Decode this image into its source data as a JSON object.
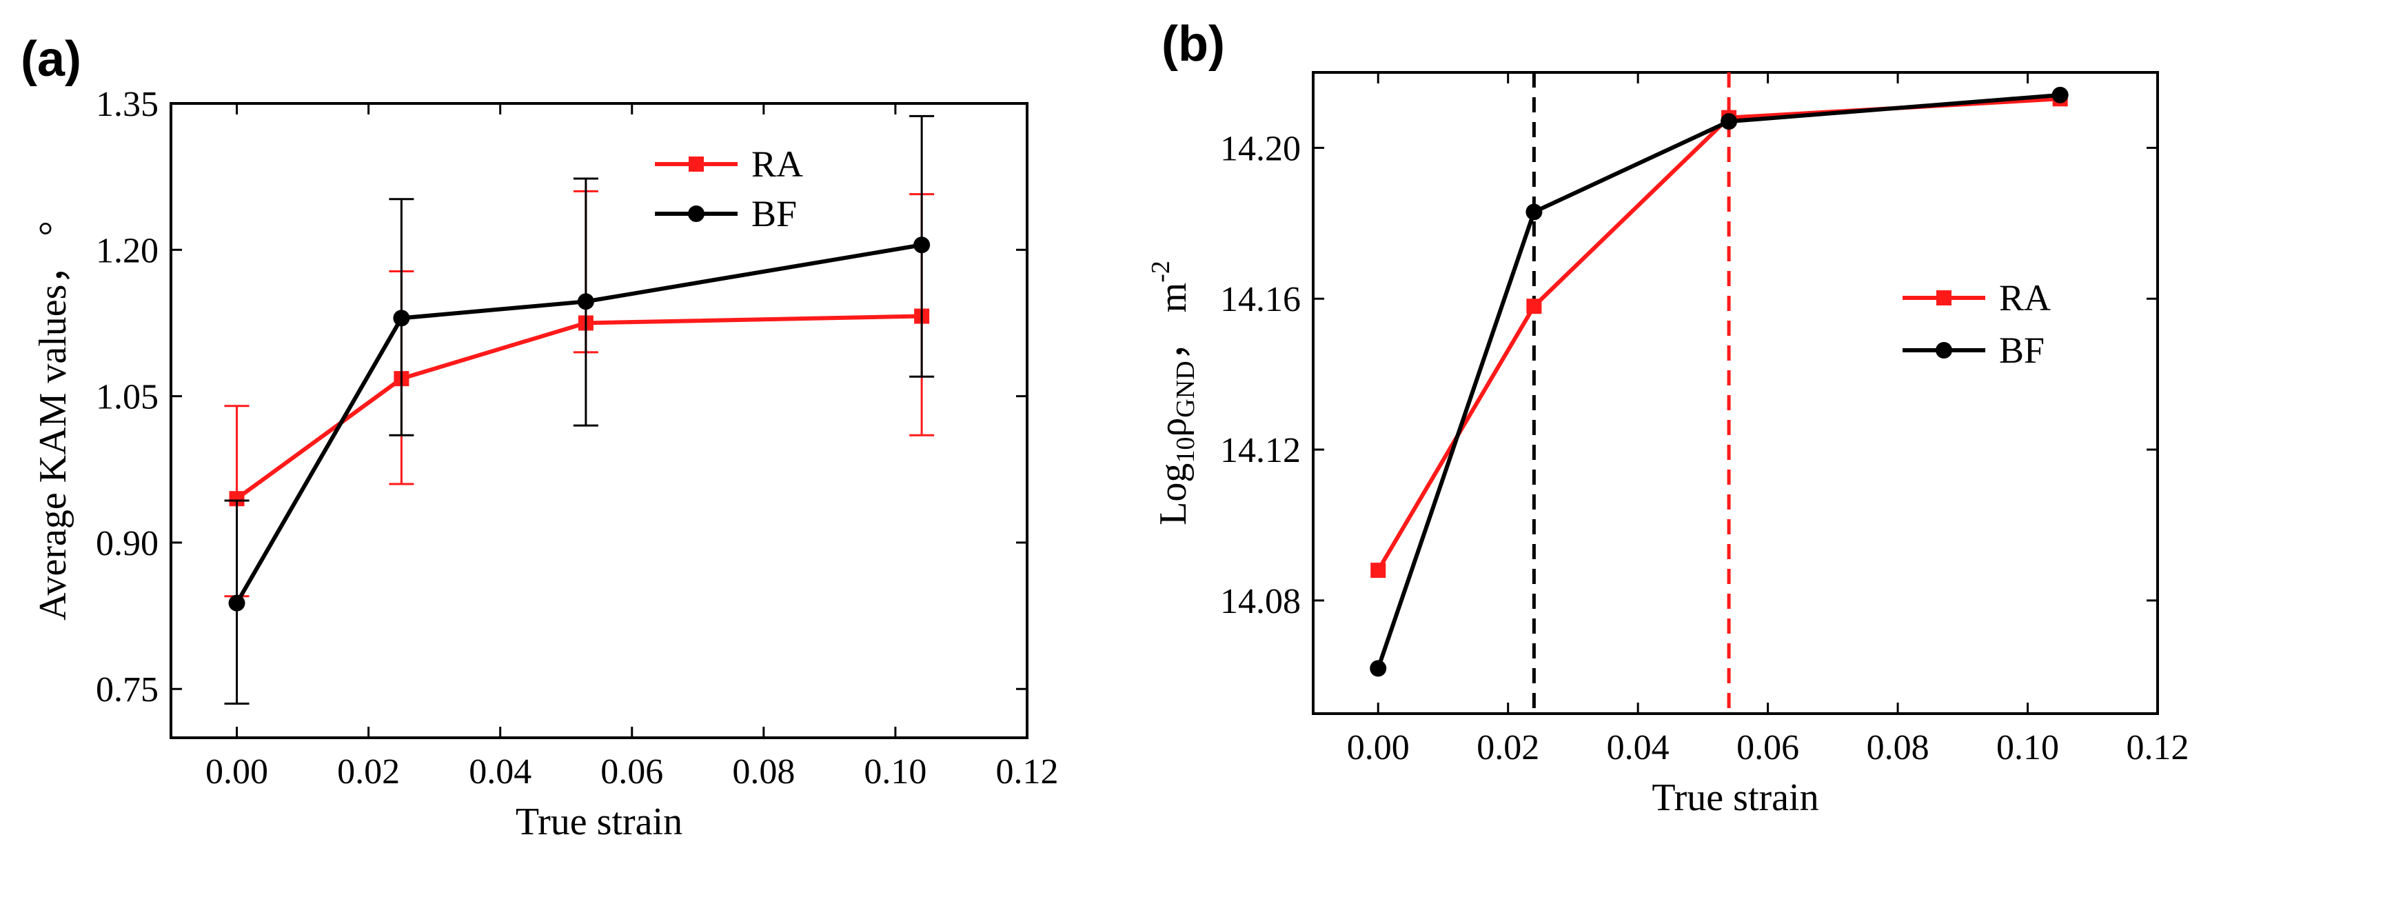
{
  "chart_data": [
    {
      "panel": "(a)",
      "type": "line",
      "title": "",
      "xlabel": "True strain",
      "ylabel": "Average KAM values， °",
      "xlim": [
        -0.01,
        0.12
      ],
      "ylim": [
        0.7,
        1.35
      ],
      "xticks": [
        0.0,
        0.02,
        0.04,
        0.06,
        0.08,
        0.1,
        0.12
      ],
      "xtick_labels": [
        "0.00",
        "0.02",
        "0.04",
        "0.06",
        "0.08",
        "0.10",
        "0.12"
      ],
      "yticks": [
        0.75,
        0.9,
        1.05,
        1.2,
        1.35
      ],
      "ytick_labels": [
        "0.75",
        "0.90",
        "1.05",
        "1.20",
        "1.35"
      ],
      "legend_position": "top-right",
      "series": [
        {
          "name": "RA",
          "color": "#ff1a1a",
          "marker": "square",
          "x": [
            0.0,
            0.025,
            0.053,
            0.104
          ],
          "y": [
            0.945,
            1.068,
            1.125,
            1.132
          ],
          "err_low": [
            0.1,
            0.108,
            0.03,
            0.122
          ],
          "err_high": [
            0.095,
            0.11,
            0.135,
            0.125
          ]
        },
        {
          "name": "BF",
          "color": "#000000",
          "marker": "circle",
          "x": [
            0.0,
            0.025,
            0.053,
            0.104
          ],
          "y": [
            0.838,
            1.13,
            1.147,
            1.205
          ],
          "err_low": [
            0.103,
            0.12,
            0.127,
            0.135
          ],
          "err_high": [
            0.105,
            0.122,
            0.126,
            0.132
          ]
        }
      ]
    },
    {
      "panel": "(b)",
      "type": "line",
      "title": "",
      "xlabel": "True strain",
      "ylabel_main": "Log",
      "ylabel_sub": "10",
      "ylabel_rho": "ρ",
      "ylabel_rho_sub": "GND",
      "ylabel_unit": "， m",
      "ylabel_unit_sup": "-2",
      "xlim": [
        -0.01,
        0.12
      ],
      "ylim": [
        14.05,
        14.22
      ],
      "xticks": [
        0.0,
        0.02,
        0.04,
        0.06,
        0.08,
        0.1,
        0.12
      ],
      "xtick_labels": [
        "0.00",
        "0.02",
        "0.04",
        "0.06",
        "0.08",
        "0.10",
        "0.12"
      ],
      "yticks": [
        14.08,
        14.12,
        14.16,
        14.2
      ],
      "ytick_labels": [
        "14.08",
        "14.12",
        "14.16",
        "14.20"
      ],
      "legend_position": "right",
      "vlines": [
        {
          "x": 0.024,
          "color": "#000000"
        },
        {
          "x": 0.054,
          "color": "#ff1a1a"
        }
      ],
      "series": [
        {
          "name": "RA",
          "color": "#ff1a1a",
          "marker": "square",
          "x": [
            0.0,
            0.024,
            0.054,
            0.105
          ],
          "y": [
            14.088,
            14.158,
            14.208,
            14.213
          ]
        },
        {
          "name": "BF",
          "color": "#000000",
          "marker": "circle",
          "x": [
            0.0,
            0.024,
            0.054,
            0.105
          ],
          "y": [
            14.062,
            14.183,
            14.207,
            14.214
          ]
        }
      ]
    }
  ]
}
